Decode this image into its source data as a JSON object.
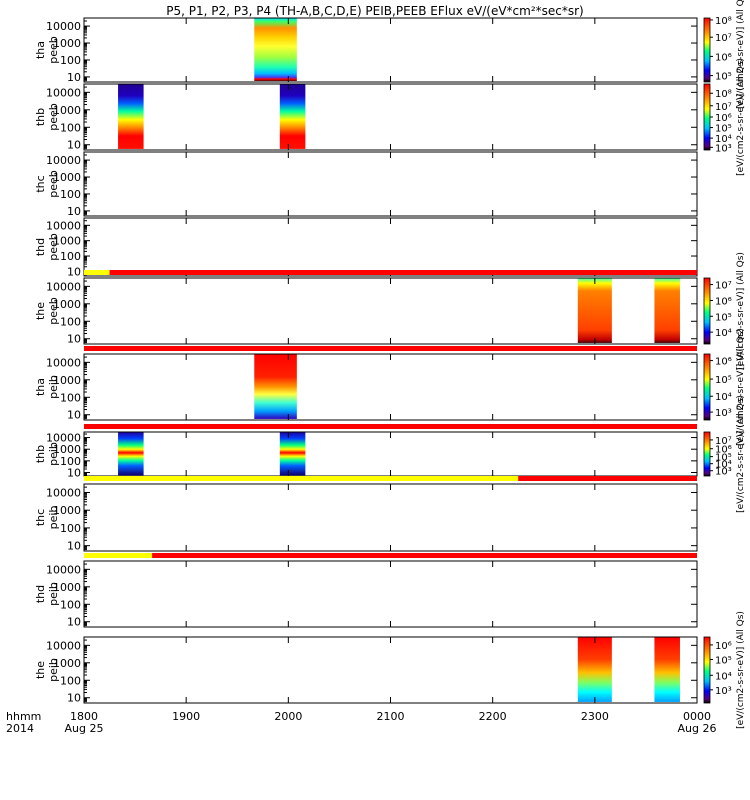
{
  "chart_data": {
    "type": "heatmap",
    "title": "P5, P1, P2, P3, P4 (TH-A,B,C,D,E) PEIB,PEEB EFlux eV/(eV*cm²*sec*sr)",
    "x_axis": {
      "range": [
        "1800",
        "0000"
      ],
      "ticks": [
        "1800",
        "1900",
        "2000",
        "2100",
        "2200",
        "2300",
        "0000"
      ],
      "date_labels": [
        "Aug 25",
        "Aug 26"
      ],
      "label_line1": "hhmm",
      "label_line2": "2014"
    },
    "y_axis": {
      "scale": "log",
      "range": [
        5,
        30000
      ],
      "ticks": [
        "10",
        "100",
        "1000",
        "10000"
      ]
    },
    "colorbar_unit": "[eV/(cm2-s-sr-eV)] (All Qs)",
    "panels": [
      {
        "label": [
          "tha",
          "peeb"
        ],
        "colorbar": [
          "10⁵",
          "10⁶",
          "10⁷",
          "10⁸"
        ],
        "colorbar_position": [
          0.9,
          0.6,
          0.3,
          0.03
        ],
        "blocks": [
          {
            "start": "1940",
            "end": "2005",
            "style": "tha_peeb"
          }
        ],
        "mode_bar": []
      },
      {
        "label": [
          "thb",
          "peeb"
        ],
        "colorbar": [
          "10³",
          "10⁴",
          "10⁵",
          "10⁶",
          "10⁷",
          "10⁸"
        ],
        "colorbar_position": [
          0.96,
          0.82,
          0.66,
          0.5,
          0.33,
          0.14
        ],
        "blocks": [
          {
            "start": "1820",
            "end": "1835",
            "style": "thb_peeb"
          },
          {
            "start": "1955",
            "end": "2010",
            "style": "thb_peeb"
          }
        ],
        "mode_bar": []
      },
      {
        "label": [
          "thc",
          "peeb"
        ],
        "colorbar": [],
        "colorbar_position": [],
        "blocks": [],
        "mode_bar": []
      },
      {
        "label": [
          "thd",
          "peeb"
        ],
        "colorbar": [],
        "colorbar_position": [],
        "blocks": [],
        "mode_bar": []
      },
      {
        "label": [
          "the",
          "peeb"
        ],
        "colorbar": [
          "10⁴",
          "10⁵",
          "10⁶",
          "10⁷"
        ],
        "colorbar_position": [
          0.82,
          0.58,
          0.34,
          0.1
        ],
        "blocks": [
          {
            "start": "2250",
            "end": "2310",
            "style": "the_peeb"
          },
          {
            "start": "2335",
            "end": "2350",
            "style": "the_peeb"
          }
        ],
        "mode_bar": [
          {
            "start": "1800",
            "end": "1815",
            "color": "#ffff00"
          },
          {
            "start": "1815",
            "end": "0000",
            "color": "#ff0000"
          }
        ]
      },
      {
        "label": [
          "tha",
          "peib"
        ],
        "colorbar": [
          "10³",
          "10⁴",
          "10⁵",
          "10⁶"
        ],
        "colorbar_position": [
          0.88,
          0.64,
          0.38,
          0.1
        ],
        "blocks": [
          {
            "start": "1940",
            "end": "2005",
            "style": "tha_peib"
          }
        ],
        "mode_bar": [
          {
            "start": "1800",
            "end": "0000",
            "color": "#ff0000"
          }
        ]
      },
      {
        "label": [
          "thb",
          "peib"
        ],
        "colorbar": [
          "10³",
          "10⁴",
          "10⁵",
          "10⁶",
          "10⁷"
        ],
        "colorbar_position": [
          0.88,
          0.72,
          0.56,
          0.38,
          0.18
        ],
        "blocks": [
          {
            "start": "1820",
            "end": "1835",
            "style": "thb_peib"
          },
          {
            "start": "1955",
            "end": "2010",
            "style": "thb_peib"
          }
        ],
        "mode_bar": [
          {
            "start": "1800",
            "end": "0000",
            "color": "#ff0000"
          }
        ]
      },
      {
        "label": [
          "thc",
          "peib"
        ],
        "colorbar": [],
        "colorbar_position": [],
        "blocks": [],
        "mode_bar": [
          {
            "start": "1800",
            "end": "2215",
            "color": "#ffff00"
          },
          {
            "start": "2215",
            "end": "0000",
            "color": "#ff0000"
          }
        ]
      },
      {
        "label": [
          "thd",
          "peib"
        ],
        "colorbar": [],
        "colorbar_position": [],
        "blocks": [],
        "mode_bar": [
          {
            "start": "1800",
            "end": "1840",
            "color": "#ffff00"
          },
          {
            "start": "1840",
            "end": "0000",
            "color": "#ff0000"
          }
        ]
      },
      {
        "label": [
          "the",
          "peib"
        ],
        "colorbar": [
          "10³",
          "10⁴",
          "10⁵",
          "10⁶"
        ],
        "colorbar_position": [
          0.8,
          0.58,
          0.34,
          0.12
        ],
        "blocks": [
          {
            "start": "2250",
            "end": "2310",
            "style": "the_peib"
          },
          {
            "start": "2335",
            "end": "2350",
            "style": "the_peib"
          }
        ],
        "mode_bar": []
      }
    ]
  }
}
